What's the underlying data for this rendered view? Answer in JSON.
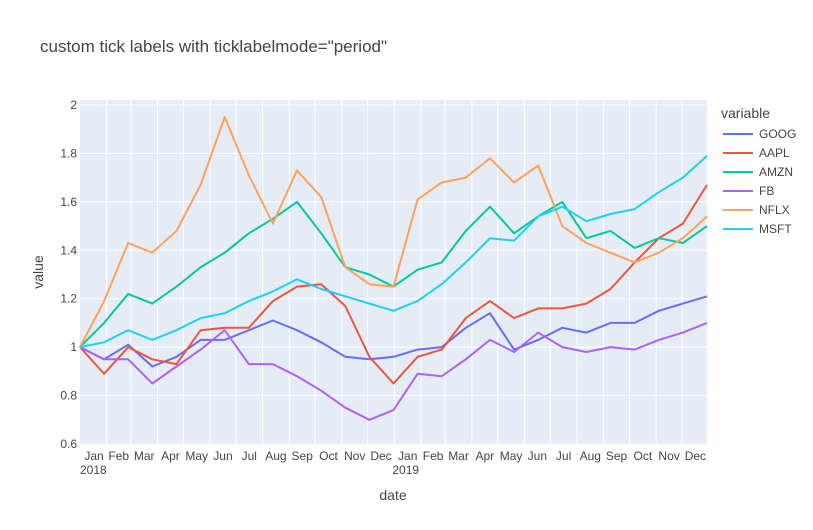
{
  "chart_data": {
    "type": "line",
    "title": "custom tick labels with ticklabelmode=\"period\"",
    "xlabel": "date",
    "ylabel": "value",
    "ylim": [
      0.6,
      2.0
    ],
    "yticks": [
      0.6,
      0.8,
      1,
      1.2,
      1.4,
      1.6,
      1.8,
      2
    ],
    "xlim": [
      "2018-01-01",
      "2019-12-30"
    ],
    "x_tick_labels": [
      "Jan",
      "Feb",
      "Mar",
      "Apr",
      "May",
      "Jun",
      "Jul",
      "Aug",
      "Sep",
      "Oct",
      "Nov",
      "Dec",
      "Jan",
      "Feb",
      "Mar",
      "Apr",
      "May",
      "Jun",
      "Jul",
      "Aug",
      "Sep",
      "Oct",
      "Nov",
      "Dec"
    ],
    "year_labels": [
      "2018",
      "2019"
    ],
    "grid": true,
    "legend_title": "variable",
    "legend_position": "right",
    "x": [
      "2018-01-01",
      "2018-01-29",
      "2018-02-26",
      "2018-03-26",
      "2018-04-23",
      "2018-05-21",
      "2018-06-18",
      "2018-07-16",
      "2018-08-13",
      "2018-09-10",
      "2018-10-08",
      "2018-11-05",
      "2018-12-03",
      "2018-12-31",
      "2019-01-28",
      "2019-02-25",
      "2019-03-25",
      "2019-04-22",
      "2019-05-20",
      "2019-06-17",
      "2019-07-15",
      "2019-08-12",
      "2019-09-09",
      "2019-10-07",
      "2019-11-04",
      "2019-12-02",
      "2019-12-30"
    ],
    "series": [
      {
        "name": "GOOG",
        "color": "#636EFA",
        "values": [
          1.0,
          0.95,
          1.01,
          0.92,
          0.96,
          1.03,
          1.03,
          1.07,
          1.11,
          1.07,
          1.02,
          0.96,
          0.95,
          0.96,
          0.99,
          1.0,
          1.08,
          1.14,
          0.99,
          1.03,
          1.08,
          1.06,
          1.1,
          1.1,
          1.15,
          1.18,
          1.21
        ]
      },
      {
        "name": "AAPL",
        "color": "#EF553B",
        "values": [
          1.0,
          0.89,
          1.0,
          0.95,
          0.93,
          1.07,
          1.08,
          1.08,
          1.19,
          1.25,
          1.26,
          1.17,
          0.96,
          0.85,
          0.96,
          0.99,
          1.12,
          1.19,
          1.12,
          1.16,
          1.16,
          1.18,
          1.24,
          1.35,
          1.45,
          1.51,
          1.67
        ]
      },
      {
        "name": "AMZN",
        "color": "#00CC96",
        "values": [
          1.0,
          1.1,
          1.22,
          1.18,
          1.25,
          1.33,
          1.39,
          1.47,
          1.53,
          1.6,
          1.47,
          1.33,
          1.3,
          1.25,
          1.32,
          1.35,
          1.48,
          1.58,
          1.47,
          1.54,
          1.6,
          1.45,
          1.48,
          1.41,
          1.45,
          1.43,
          1.5
        ]
      },
      {
        "name": "FB",
        "color": "#AB63FA",
        "values": [
          1.0,
          0.95,
          0.95,
          0.85,
          0.92,
          0.99,
          1.07,
          0.93,
          0.93,
          0.88,
          0.82,
          0.75,
          0.7,
          0.74,
          0.89,
          0.88,
          0.95,
          1.03,
          0.98,
          1.06,
          1.0,
          0.98,
          1.0,
          0.99,
          1.03,
          1.06,
          1.1
        ]
      },
      {
        "name": "NFLX",
        "color": "#FFA15A",
        "values": [
          1.0,
          1.19,
          1.43,
          1.39,
          1.48,
          1.67,
          1.95,
          1.71,
          1.51,
          1.73,
          1.62,
          1.33,
          1.26,
          1.25,
          1.61,
          1.68,
          1.7,
          1.78,
          1.68,
          1.75,
          1.5,
          1.43,
          1.39,
          1.35,
          1.39,
          1.45,
          1.54
        ]
      },
      {
        "name": "MSFT",
        "color": "#19D3F3",
        "values": [
          1.0,
          1.02,
          1.07,
          1.03,
          1.07,
          1.12,
          1.14,
          1.19,
          1.23,
          1.28,
          1.24,
          1.21,
          1.18,
          1.15,
          1.19,
          1.26,
          1.35,
          1.45,
          1.44,
          1.54,
          1.58,
          1.52,
          1.55,
          1.57,
          1.64,
          1.7,
          1.79
        ]
      }
    ]
  }
}
